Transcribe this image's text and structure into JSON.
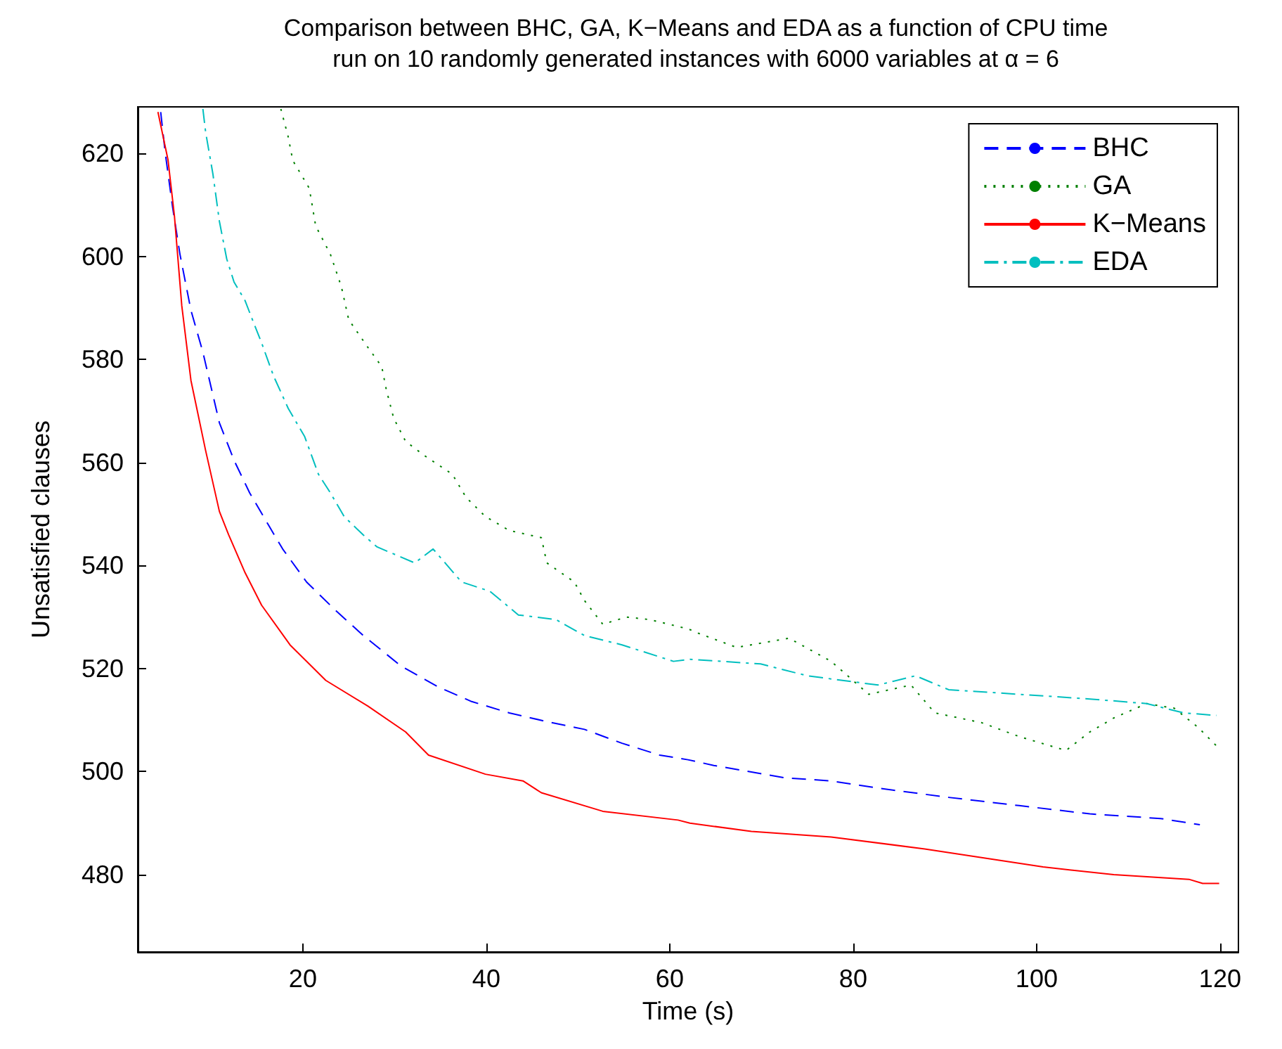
{
  "chart_data": {
    "type": "line",
    "title": "Comparison between BHC, GA, K−Means and EDA as a function of CPU time\nrun on 10 randomly generated instances with 6000 variables at α = 6",
    "xlabel": "Time (s)",
    "ylabel": "Unsatisfied clauses",
    "xlim": [
      2,
      122
    ],
    "xticks": [
      20,
      40,
      60,
      80,
      100,
      120
    ],
    "ylim": [
      465,
      629
    ],
    "yticks": [
      480,
      500,
      520,
      540,
      560,
      580,
      600,
      620
    ],
    "grid": false,
    "legend": "top right",
    "marker": "none",
    "series": [
      {
        "name": "BHC",
        "color": "#0000ff",
        "line_style": "dashed",
        "x": [
          4.5,
          5,
          5.8,
          6.6,
          7.8,
          9.1,
          10.9,
          12.5,
          14.2,
          16.3,
          17.8,
          20.4,
          23.5,
          26.6,
          30.7,
          34.8,
          38.4,
          42.5,
          46.6,
          50.7,
          54.8,
          58.9,
          62,
          64.8,
          72.5,
          77.6,
          82.7,
          90.4,
          98.1,
          105.8,
          113.5,
          117.8
        ],
        "values": [
          628,
          620,
          609.5,
          600.4,
          589.5,
          581.4,
          567.7,
          560.4,
          554.1,
          547.7,
          543.2,
          536.8,
          531.4,
          526.4,
          520.5,
          516.4,
          513.6,
          511.4,
          509.7,
          508.2,
          505.5,
          503.2,
          502.3,
          501.2,
          498.8,
          498.2,
          496.8,
          495,
          493.4,
          491.8,
          490.9,
          489.7
        ]
      },
      {
        "name": "GA",
        "color": "#008000",
        "line_style": "dotted",
        "x": [
          17.6,
          18.4,
          18.9,
          20.7,
          21.4,
          23,
          24.2,
          25,
          27.1,
          28.6,
          29.1,
          29.9,
          31.2,
          33.2,
          36.3,
          37.8,
          39.9,
          42.5,
          46,
          46.6,
          49.6,
          50.7,
          52.7,
          55.3,
          57.8,
          62,
          63.2,
          67.3,
          73,
          77.6,
          81.7,
          86.3,
          88.9,
          94,
          98.1,
          103.2,
          105.8,
          108.4,
          112,
          115,
          117.6,
          119.6
        ],
        "values": [
          628.6,
          623.2,
          618.6,
          613.2,
          605.9,
          600.4,
          594.1,
          587.7,
          582.3,
          578.6,
          574.1,
          568.6,
          564.1,
          561.4,
          557.7,
          553.2,
          549.5,
          546.8,
          545.4,
          540.5,
          536.8,
          533.2,
          528.6,
          530,
          529.5,
          527.7,
          526.8,
          524.1,
          525.9,
          521.4,
          515,
          516.8,
          511.4,
          509.5,
          506.8,
          504.1,
          507.7,
          510.4,
          513.2,
          512.3,
          508.6,
          505
        ]
      },
      {
        "name": "K−Means",
        "color": "#ff0000",
        "line_style": "solid",
        "x": [
          4.2,
          5.3,
          6,
          6.8,
          7.8,
          9.4,
          10.9,
          11.9,
          13.7,
          15.5,
          18.6,
          22.5,
          27.1,
          31.2,
          33.7,
          39.9,
          44,
          46,
          52.7,
          60.9,
          62.2,
          68.9,
          77.6,
          87.8,
          100.7,
          108.4,
          116.6,
          118.1,
          119.9
        ],
        "values": [
          628,
          618.7,
          607.8,
          590.4,
          575.9,
          562.3,
          550.5,
          546,
          538.6,
          532.3,
          524.6,
          517.7,
          512.7,
          507.7,
          503.2,
          499.5,
          498.2,
          495.9,
          492.3,
          490.6,
          490,
          488.4,
          487.3,
          485,
          481.5,
          480,
          479.1,
          478.3,
          478.3
        ]
      },
      {
        "name": "EDA",
        "color": "#00bfbf",
        "line_style": "dashdot",
        "x": [
          9.1,
          9.4,
          10.2,
          10.9,
          11.7,
          12.5,
          13.7,
          14.5,
          15.5,
          16.8,
          18.4,
          20.2,
          21.7,
          23,
          24.5,
          26.6,
          28.1,
          32.2,
          34.2,
          37.3,
          40.4,
          43.5,
          47.6,
          50.7,
          54.8,
          60.4,
          62.2,
          69.9,
          75,
          82.7,
          86.8,
          90.4,
          98.1,
          105.8,
          112,
          116,
          119.6
        ],
        "values": [
          628.6,
          624.1,
          615.9,
          606.8,
          599.5,
          595,
          591.4,
          587.7,
          583.2,
          576.8,
          570.5,
          565,
          557.7,
          554.1,
          549.5,
          545.9,
          543.6,
          540.5,
          543.2,
          536.8,
          535,
          530.4,
          529.5,
          526.4,
          524.6,
          521.4,
          521.8,
          520.9,
          518.6,
          516.8,
          518.6,
          515.9,
          515,
          514.1,
          513.2,
          511.4,
          510.9
        ]
      }
    ]
  }
}
